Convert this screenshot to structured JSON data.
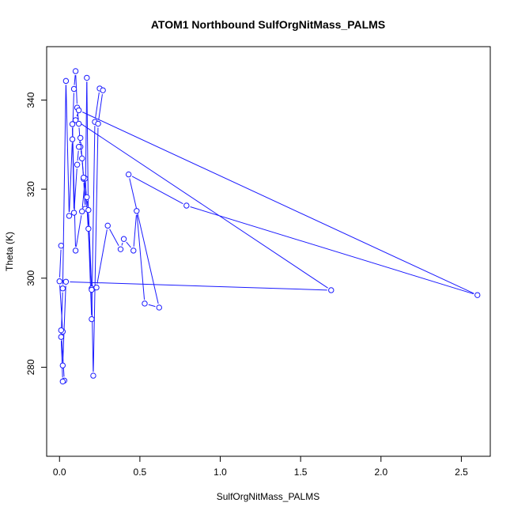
{
  "chart_data": {
    "type": "line",
    "title": "ATOM1 Northbound SulfOrgNitMass_PALMS",
    "xlabel": "SulfOrgNitMass_PALMS",
    "ylabel": "Theta (K)",
    "xlim": [
      -0.08,
      2.68
    ],
    "ylim": [
      260,
      352
    ],
    "xticks": [
      0.0,
      0.5,
      1.0,
      1.5,
      2.0,
      2.5
    ],
    "xtick_labels": [
      "0.0",
      "0.5",
      "1.0",
      "1.5",
      "2.0",
      "2.5"
    ],
    "yticks": [
      280,
      300,
      320,
      340
    ],
    "ytick_labels": [
      "280",
      "300",
      "320",
      "340"
    ],
    "grid": false,
    "legend": "none",
    "color": "#1a1aff",
    "x": [
      0.01,
      0.0,
      0.02,
      0.01,
      0.03,
      0.02,
      0.01,
      0.02,
      0.04,
      0.06,
      0.08,
      0.09,
      0.1,
      0.11,
      0.12,
      0.13,
      0.14,
      0.15,
      0.16,
      0.17,
      0.18,
      0.2,
      0.22,
      0.25,
      0.27,
      0.24,
      0.21,
      0.2,
      0.16,
      0.14,
      0.1,
      0.08,
      0.09,
      0.11,
      0.12,
      0.13,
      0.15,
      0.17,
      0.18,
      0.2,
      0.23,
      0.3,
      0.38,
      0.4,
      0.46,
      0.48,
      0.53,
      0.62,
      0.43,
      0.79,
      2.6,
      0.12,
      0.1,
      1.69,
      0.04,
      0.02
    ],
    "y": [
      307.3,
      299.3,
      288.0,
      288.3,
      277.0,
      276.8,
      286.8,
      297.7,
      344.3,
      314.0,
      331.2,
      342.5,
      346.5,
      338.3,
      334.7,
      329.5,
      326.9,
      322.3,
      315.6,
      345.0,
      311.1,
      290.8,
      335.1,
      342.6,
      342.2,
      334.7,
      278.1,
      297.7,
      322.4,
      315.0,
      306.2,
      334.6,
      314.7,
      325.5,
      329.5,
      331.5,
      322.6,
      318.2,
      315.3,
      297.4,
      297.9,
      311.8,
      306.5,
      308.8,
      306.2,
      315.1,
      294.3,
      293.4,
      323.3,
      316.3,
      296.2,
      337.7,
      335.5,
      297.3,
      299.2,
      280.4
    ]
  }
}
